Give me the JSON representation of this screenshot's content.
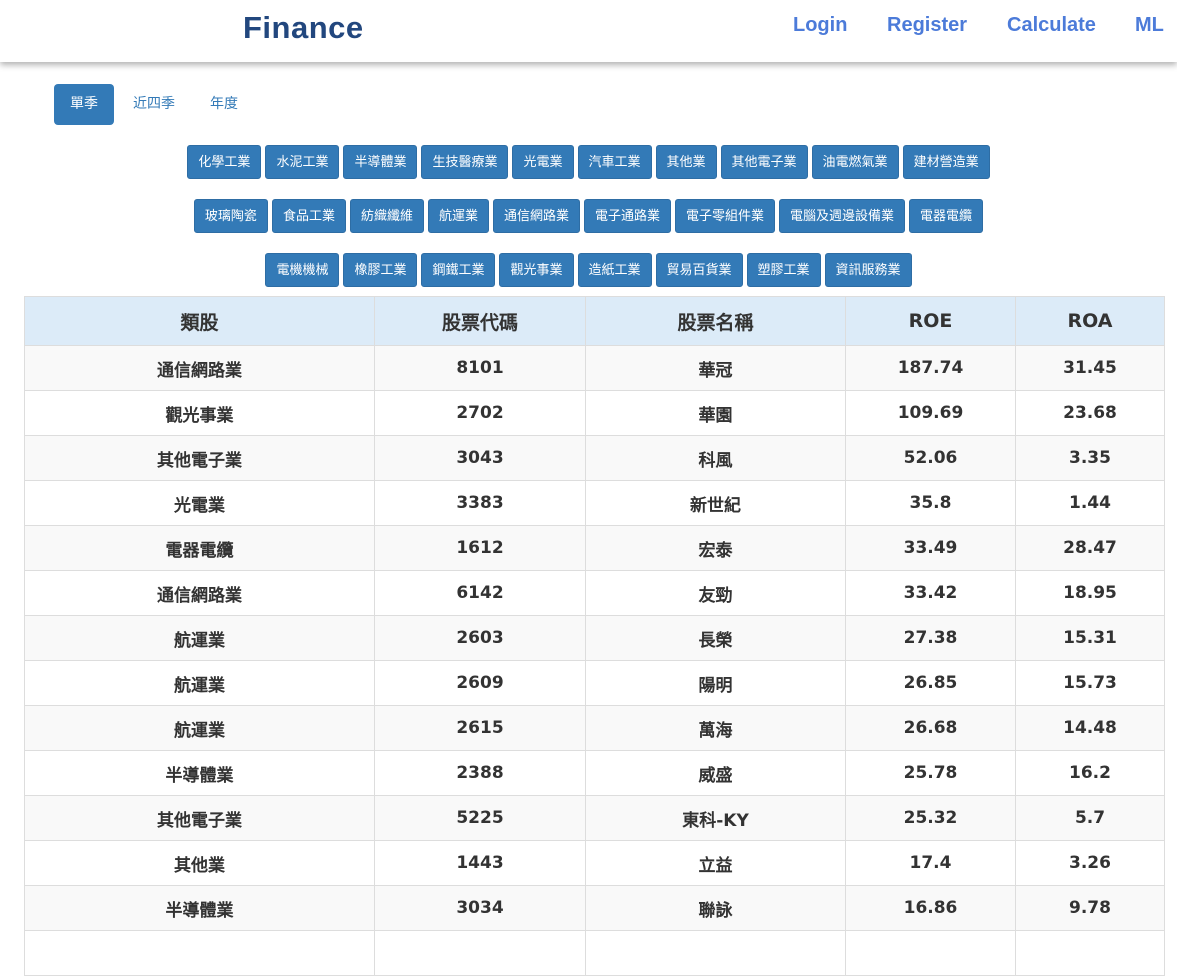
{
  "navbar": {
    "brand": "Finance",
    "links": [
      "Login",
      "Register",
      "Calculate",
      "ML"
    ]
  },
  "tabs": [
    {
      "label": "單季",
      "active": true
    },
    {
      "label": "近四季",
      "active": false
    },
    {
      "label": "年度",
      "active": false
    }
  ],
  "categories": [
    [
      "化學工業",
      "水泥工業",
      "半導體業",
      "生技醫療業",
      "光電業",
      "汽車工業",
      "其他業",
      "其他電子業",
      "油電燃氣業",
      "建材營造業"
    ],
    [
      "玻璃陶瓷",
      "食品工業",
      "紡織纖維",
      "航運業",
      "通信網路業",
      "電子通路業",
      "電子零組件業",
      "電腦及週邊設備業",
      "電器電纜"
    ],
    [
      "電機機械",
      "橡膠工業",
      "鋼鐵工業",
      "觀光事業",
      "造紙工業",
      "貿易百貨業",
      "塑膠工業",
      "資訊服務業"
    ]
  ],
  "table": {
    "headers": [
      "類股",
      "股票代碼",
      "股票名稱",
      "ROE",
      "ROA"
    ],
    "rows": [
      [
        "通信網路業",
        "8101",
        "華冠",
        "187.74",
        "31.45"
      ],
      [
        "觀光事業",
        "2702",
        "華園",
        "109.69",
        "23.68"
      ],
      [
        "其他電子業",
        "3043",
        "科風",
        "52.06",
        "3.35"
      ],
      [
        "光電業",
        "3383",
        "新世紀",
        "35.8",
        "1.44"
      ],
      [
        "電器電纜",
        "1612",
        "宏泰",
        "33.49",
        "28.47"
      ],
      [
        "通信網路業",
        "6142",
        "友勁",
        "33.42",
        "18.95"
      ],
      [
        "航運業",
        "2603",
        "長榮",
        "27.38",
        "15.31"
      ],
      [
        "航運業",
        "2609",
        "陽明",
        "26.85",
        "15.73"
      ],
      [
        "航運業",
        "2615",
        "萬海",
        "26.68",
        "14.48"
      ],
      [
        "半導體業",
        "2388",
        "威盛",
        "25.78",
        "16.2"
      ],
      [
        "其他電子業",
        "5225",
        "東科-KY",
        "25.32",
        "5.7"
      ],
      [
        "其他業",
        "1443",
        "立益",
        "17.4",
        "3.26"
      ],
      [
        "半導體業",
        "3034",
        "聯詠",
        "16.86",
        "9.78"
      ],
      [
        "",
        "",
        "",
        "",
        ""
      ]
    ]
  },
  "colors": {
    "brand": "#22477e",
    "nav_link": "#4c7bd9",
    "primary": "#337ab7",
    "table_header": "#dcebf8"
  }
}
